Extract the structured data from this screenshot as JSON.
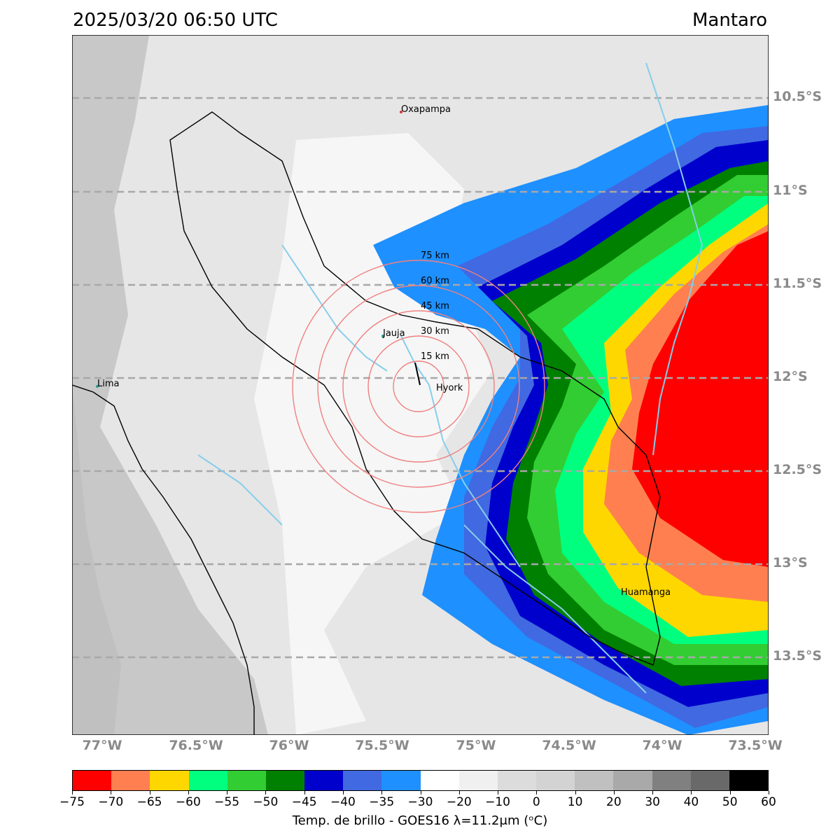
{
  "header": {
    "datetime": "2025/03/20 06:50 UTC",
    "region": "Mantaro"
  },
  "map": {
    "lat_labels": [
      "10.5°S",
      "11°S",
      "11.5°S",
      "12°S",
      "12.5°S",
      "13°S",
      "13.5°S"
    ],
    "lon_labels": [
      "77°W",
      "76.5°W",
      "76°W",
      "75.5°W",
      "75°W",
      "74.5°W",
      "74°W",
      "73.5°W"
    ],
    "cities": [
      {
        "name": "Oxapampa",
        "color": "#e03030"
      },
      {
        "name": "Jauja",
        "color": "#2a9d8f"
      },
      {
        "name": "Lima",
        "color": "#2a9d8f"
      },
      {
        "name": "Hyork",
        "color": "#000000"
      },
      {
        "name": "Huamanga",
        "color": "#000000"
      }
    ],
    "range_rings": [
      "15 km",
      "30 km",
      "45 km",
      "60 km",
      "75 km"
    ],
    "ring_color": "#f08080",
    "river_color": "#87ceeb",
    "grid_color": "#a8a8a8"
  },
  "colorbar": {
    "label": "Temp. de brillo - GOES16 λ=11.2μm (ᵒC)",
    "ticks": [
      "−75",
      "−70",
      "−65",
      "−60",
      "−55",
      "−50",
      "−45",
      "−40",
      "−35",
      "−30",
      "−20",
      "−10",
      "0",
      "10",
      "20",
      "30",
      "40",
      "50",
      "60"
    ],
    "colors": [
      "#ff0000",
      "#ff7f50",
      "#ffd700",
      "#00ff7f",
      "#32cd32",
      "#008000",
      "#0000cd",
      "#4169e1",
      "#1e90ff",
      "#ffffff",
      "#f0f0f0",
      "#dcdcdc",
      "#d3d3d3",
      "#c0c0c0",
      "#a9a9a9",
      "#808080",
      "#696969",
      "#000000"
    ]
  }
}
